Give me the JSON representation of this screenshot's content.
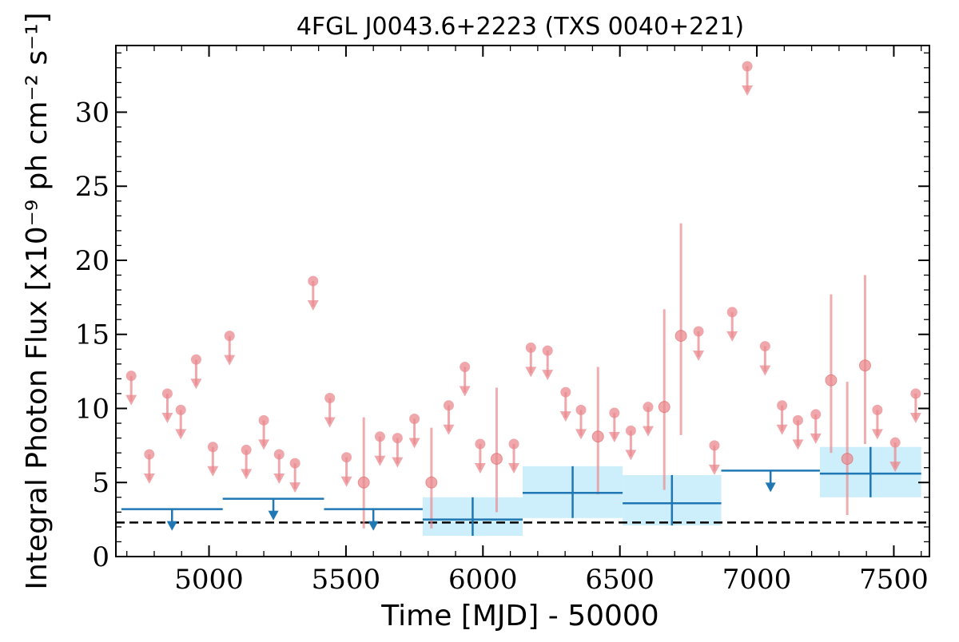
{
  "chart_data": {
    "type": "scatter",
    "title": "4FGL J0043.6+2223 (TXS 0040+221)",
    "xlabel": "Time [MJD] - 50000",
    "ylabel": "Integral Photon Flux [x10⁻⁹ ph cm⁻² s⁻¹]",
    "xlim": [
      4660,
      7630
    ],
    "ylim": [
      0,
      34.5
    ],
    "xticks": [
      5000,
      5500,
      6000,
      6500,
      7000,
      7500
    ],
    "yticks": [
      0,
      5,
      10,
      15,
      20,
      25,
      30
    ],
    "baseline": 2.3,
    "colors": {
      "short_bins": "#e98a8f",
      "long_bins": "#1f77b4",
      "band": "#cdeefb",
      "baseline": "#000000"
    },
    "short_bin_upper_limits": [
      [
        4716,
        12.2
      ],
      [
        4782,
        6.9
      ],
      [
        4848,
        11.0
      ],
      [
        4897,
        9.9
      ],
      [
        4953,
        13.3
      ],
      [
        5014,
        7.4
      ],
      [
        5075,
        14.9
      ],
      [
        5136,
        7.2
      ],
      [
        5200,
        9.2
      ],
      [
        5256,
        6.9
      ],
      [
        5314,
        6.3
      ],
      [
        5380,
        18.6
      ],
      [
        5441,
        10.7
      ],
      [
        5502,
        6.7
      ],
      [
        5624,
        8.1
      ],
      [
        5688,
        8.0
      ],
      [
        5750,
        9.3
      ],
      [
        5875,
        10.2
      ],
      [
        5934,
        12.8
      ],
      [
        5990,
        7.6
      ],
      [
        6113,
        7.6
      ],
      [
        6175,
        14.1
      ],
      [
        6236,
        13.9
      ],
      [
        6302,
        11.1
      ],
      [
        6358,
        9.9
      ],
      [
        6480,
        9.7
      ],
      [
        6540,
        8.5
      ],
      [
        6603,
        10.1
      ],
      [
        6787,
        15.2
      ],
      [
        6845,
        7.5
      ],
      [
        6910,
        16.5
      ],
      [
        6965,
        33.1
      ],
      [
        7030,
        14.2
      ],
      [
        7092,
        10.2
      ],
      [
        7150,
        9.2
      ],
      [
        7215,
        9.6
      ],
      [
        7440,
        9.9
      ],
      [
        7505,
        7.7
      ],
      [
        7580,
        11.0
      ]
    ],
    "short_bin_detections": [
      {
        "x": 5565,
        "y": 5.0,
        "ylow": 1.9,
        "yhigh": 9.4
      },
      {
        "x": 5812,
        "y": 5.0,
        "ylow": 1.9,
        "yhigh": 8.7
      },
      {
        "x": 6050,
        "y": 6.6,
        "ylow": 3.0,
        "yhigh": 11.4
      },
      {
        "x": 6420,
        "y": 8.1,
        "ylow": 4.2,
        "yhigh": 12.8
      },
      {
        "x": 6662,
        "y": 10.1,
        "ylow": 4.5,
        "yhigh": 16.7
      },
      {
        "x": 6723,
        "y": 14.9,
        "ylow": 8.2,
        "yhigh": 22.5
      },
      {
        "x": 7271,
        "y": 11.9,
        "ylow": 7.0,
        "yhigh": 17.7
      },
      {
        "x": 7330,
        "y": 6.6,
        "ylow": 2.8,
        "yhigh": 11.8
      },
      {
        "x": 7395,
        "y": 12.9,
        "ylow": 7.6,
        "yhigh": 19.0
      }
    ],
    "long_bin_upper_limits": [
      {
        "x0": 4680,
        "x1": 5050,
        "y": 3.2
      },
      {
        "x0": 5050,
        "x1": 5420,
        "y": 3.9
      },
      {
        "x0": 5420,
        "x1": 5780,
        "y": 3.2
      },
      {
        "x0": 6870,
        "x1": 7230,
        "y": 5.8
      }
    ],
    "long_bin_detections": [
      {
        "x0": 5780,
        "x1": 6145,
        "y": 2.5,
        "ylow": 1.4,
        "yhigh": 4.0
      },
      {
        "x0": 6145,
        "x1": 6510,
        "y": 4.3,
        "ylow": 2.6,
        "yhigh": 6.1
      },
      {
        "x0": 6510,
        "x1": 6870,
        "y": 3.6,
        "ylow": 2.1,
        "yhigh": 5.5
      },
      {
        "x0": 7230,
        "x1": 7600,
        "y": 5.6,
        "ylow": 4.0,
        "yhigh": 7.4
      }
    ]
  }
}
